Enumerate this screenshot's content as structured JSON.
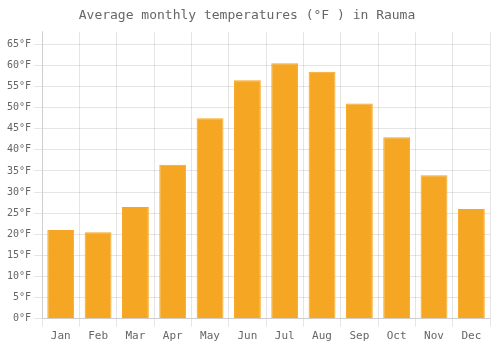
{
  "chart_data": {
    "type": "bar",
    "title": "Average monthly temperatures (°F ) in Rauma",
    "categories": [
      "Jan",
      "Feb",
      "Mar",
      "Apr",
      "May",
      "Jun",
      "Jul",
      "Aug",
      "Sep",
      "Oct",
      "Nov",
      "Dec"
    ],
    "values": [
      21,
      20.5,
      26.5,
      36.5,
      47.5,
      56.5,
      60.5,
      58.5,
      51,
      43,
      34,
      26
    ],
    "color": "#F5A623",
    "ylim": [
      0,
      68
    ],
    "yticks": [
      {
        "value": 0,
        "label": "0°F"
      },
      {
        "value": 5,
        "label": "5°F"
      },
      {
        "value": 10,
        "label": "10°F"
      },
      {
        "value": 15,
        "label": "15°F"
      },
      {
        "value": 20,
        "label": "20°F"
      },
      {
        "value": 25,
        "label": "25°F"
      },
      {
        "value": 30,
        "label": "30°F"
      },
      {
        "value": 35,
        "label": "35°F"
      },
      {
        "value": 40,
        "label": "40°F"
      },
      {
        "value": 45,
        "label": "45°F"
      },
      {
        "value": 50,
        "label": "50°F"
      },
      {
        "value": 55,
        "label": "55°F"
      },
      {
        "value": 60,
        "label": "60°F"
      },
      {
        "value": 65,
        "label": "65°F"
      }
    ],
    "grid": true
  }
}
